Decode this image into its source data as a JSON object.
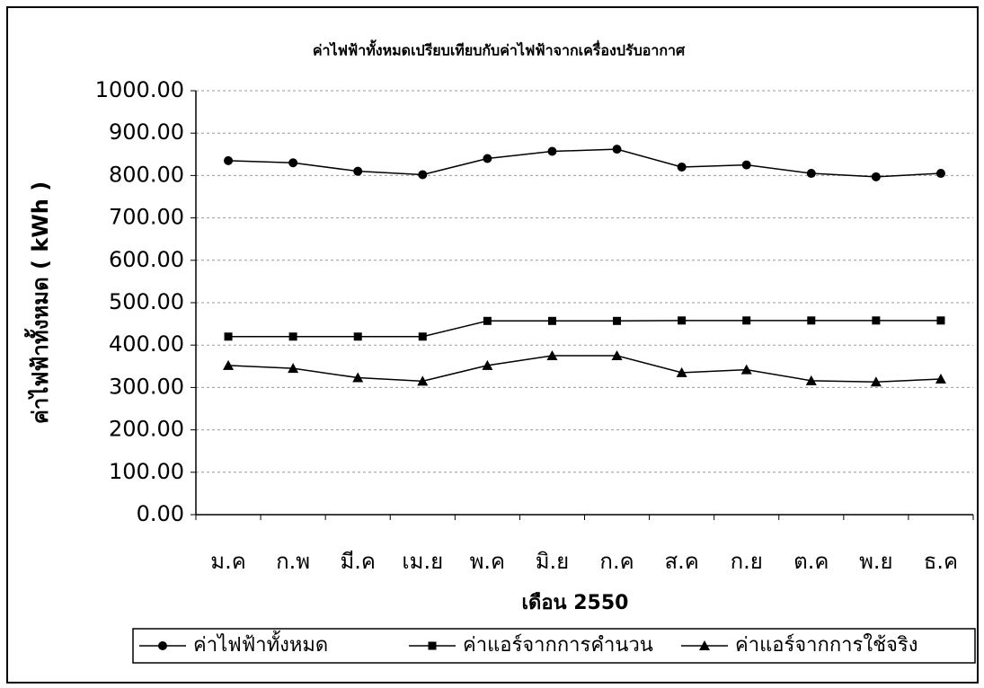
{
  "chart_data": {
    "type": "line",
    "title": "ค่าไฟฟ้าทั้งหมดเปรียบเทียบกับค่าไฟฟ้าจากเครื่องปรับอากาศ",
    "x_label": "เดือน 2550",
    "y_label": "ค่าไฟฟ้าทั้งหมด ( kWh )",
    "categories": [
      "ม.ค",
      "ก.พ",
      "มี.ค",
      "เม.ย",
      "พ.ค",
      "มิ.ย",
      "ก.ค",
      "ส.ค",
      "ก.ย",
      "ต.ค",
      "พ.ย",
      "ธ.ค"
    ],
    "series": [
      {
        "name": "ค่าไฟฟ้าทั้งหมด",
        "color": "#000000",
        "marker": "circle",
        "values": [
          835,
          830,
          810,
          802,
          840,
          857,
          862,
          820,
          825,
          805,
          797,
          805
        ]
      },
      {
        "name": "ค่าแอร์จากการคำนวน",
        "color": "#000000",
        "marker": "square",
        "values": [
          420,
          420,
          420,
          420,
          457,
          457,
          457,
          458,
          458,
          458,
          458,
          458
        ]
      },
      {
        "name": "ค่าแอร์จากการใช้จริง",
        "color": "#000000",
        "marker": "triangle",
        "values": [
          352,
          345,
          323,
          315,
          352,
          375,
          375,
          335,
          342,
          316,
          313,
          320
        ]
      }
    ],
    "ylim": [
      0,
      1000
    ],
    "yticks": [
      {
        "value": 0,
        "label": "0.00"
      },
      {
        "value": 100,
        "label": "100.00"
      },
      {
        "value": 200,
        "label": "200.00"
      },
      {
        "value": 300,
        "label": "300.00"
      },
      {
        "value": 400,
        "label": "400.00"
      },
      {
        "value": 500,
        "label": "500.00"
      },
      {
        "value": 600,
        "label": "600.00"
      },
      {
        "value": 700,
        "label": "700.00"
      },
      {
        "value": 800,
        "label": "800.00"
      },
      {
        "value": 900,
        "label": "900.00"
      },
      {
        "value": 1000,
        "label": "1000.00"
      }
    ],
    "grid": true,
    "legend": "bottom"
  }
}
